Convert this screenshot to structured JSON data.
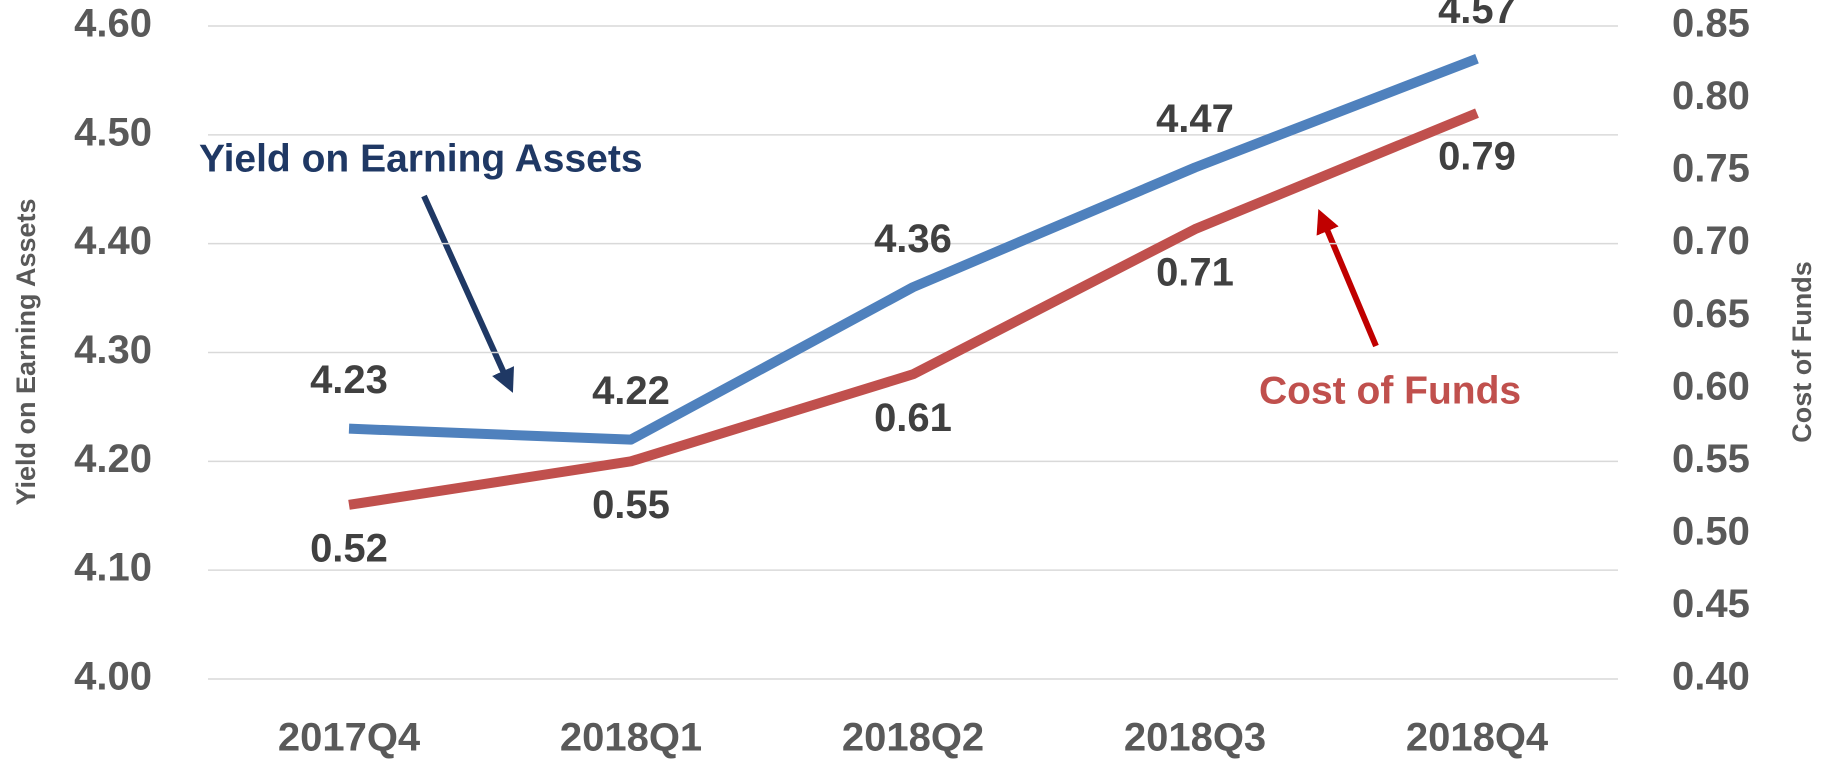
{
  "chart_data": {
    "type": "line",
    "categories": [
      "2017Q4",
      "2018Q1",
      "2018Q2",
      "2018Q3",
      "2018Q4"
    ],
    "series": [
      {
        "name": "Yield on Earning Assets",
        "color": "#4f81bd",
        "values": [
          4.23,
          4.22,
          4.36,
          4.47,
          4.57
        ]
      },
      {
        "name": "Cost of Funds",
        "color": "#c0504d",
        "axis": "y2",
        "values": [
          0.52,
          0.55,
          0.61,
          0.71,
          0.79
        ]
      }
    ],
    "y_label": "Yield on Earning Assets",
    "y2_label": "Cost of Funds",
    "ylim": [
      4.0,
      4.6
    ],
    "yticks": [
      {
        "value": 4.0,
        "label": "4.00"
      },
      {
        "value": 4.1,
        "label": "4.10"
      },
      {
        "value": 4.2,
        "label": "4.20"
      },
      {
        "value": 4.3,
        "label": "4.30"
      },
      {
        "value": 4.4,
        "label": "4.40"
      },
      {
        "value": 4.5,
        "label": "4.50"
      },
      {
        "value": 4.6,
        "label": "4.60"
      }
    ],
    "y2lim": [
      0.4,
      0.85
    ],
    "y2ticks": [
      {
        "value": 0.4,
        "label": "0.40"
      },
      0.45,
      {
        "value": 0.5,
        "label": "0.50"
      },
      0.55,
      {
        "value": 0.6,
        "label": "0.60"
      },
      0.65,
      {
        "value": 0.7,
        "label": "0.70"
      },
      0.75,
      {
        "value": 0.8,
        "label": "0.80"
      },
      0.85
    ],
    "grid": true
  }
}
